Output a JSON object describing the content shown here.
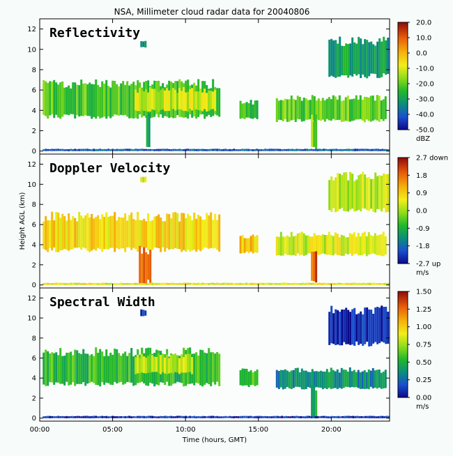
{
  "figure_title": "NSA, Millimeter cloud radar data for 20040806",
  "chart_data": [
    {
      "type": "heatmap",
      "panel_label": "Reflectivity",
      "xlabel": "",
      "ylabel": "",
      "x_ticks": [
        "00:00",
        "05:00",
        "10:00",
        "15:00",
        "20:00"
      ],
      "y_ticks": [
        0,
        2,
        4,
        6,
        8,
        10,
        12
      ],
      "xlim_hours": [
        0,
        24
      ],
      "ylim_km": [
        -0.3,
        13
      ],
      "colorbar": {
        "ticks": [
          "20.0",
          "10.0",
          "0.0",
          "-10.0",
          "-20.0",
          "-30.0",
          "-40.0",
          "-50.0"
        ],
        "unit": "dBZ",
        "range": [
          -50,
          20
        ]
      },
      "features": [
        {
          "hours": [
            0.2,
            12.3
          ],
          "km": [
            3.4,
            6.6
          ],
          "value": -22
        },
        {
          "hours": [
            6.5,
            12.0
          ],
          "km": [
            4.0,
            6.0
          ],
          "value": -12
        },
        {
          "hours": [
            7.3,
            7.5
          ],
          "km": [
            0.5,
            3.5
          ],
          "value": -30
        },
        {
          "hours": [
            6.9,
            7.2
          ],
          "km": [
            10.2,
            10.8
          ],
          "value": -35
        },
        {
          "hours": [
            13.7,
            14.9
          ],
          "km": [
            3.2,
            4.8
          ],
          "value": -22
        },
        {
          "hours": [
            16.2,
            23.8
          ],
          "km": [
            3.0,
            5.2
          ],
          "value": -20
        },
        {
          "hours": [
            18.6,
            19.0
          ],
          "km": [
            0.2,
            3.2
          ],
          "value": -18
        },
        {
          "hours": [
            19.8,
            23.9
          ],
          "km": [
            7.4,
            10.8
          ],
          "value": -30
        },
        {
          "hours": [
            0.2,
            23.9
          ],
          "km": [
            0.0,
            0.2
          ],
          "value": -40
        }
      ]
    },
    {
      "type": "heatmap",
      "panel_label": "Doppler Velocity",
      "xlabel": "",
      "ylabel": "Height AGL (km)",
      "x_ticks": [
        "00:00",
        "05:00",
        "10:00",
        "15:00",
        "20:00"
      ],
      "y_ticks": [
        0,
        2,
        4,
        6,
        8,
        10,
        12
      ],
      "xlim_hours": [
        0,
        24
      ],
      "ylim_km": [
        -0.3,
        13
      ],
      "colorbar": {
        "ticks": [
          "2.7 down",
          "1.8",
          "0.9",
          "0.0",
          "-0.9",
          "-1.8",
          "-2.7 up"
        ],
        "unit": "m/s",
        "range": [
          -2.7,
          2.7
        ]
      },
      "features": [
        {
          "hours": [
            0.2,
            12.3
          ],
          "km": [
            3.5,
            6.8
          ],
          "value": 0.8
        },
        {
          "hours": [
            6.8,
            7.6
          ],
          "km": [
            0.3,
            3.5
          ],
          "value": 2.0
        },
        {
          "hours": [
            6.9,
            7.2
          ],
          "km": [
            10.2,
            10.8
          ],
          "value": 0.3
        },
        {
          "hours": [
            13.7,
            14.9
          ],
          "km": [
            3.2,
            4.8
          ],
          "value": 0.9
        },
        {
          "hours": [
            16.2,
            23.8
          ],
          "km": [
            3.0,
            5.0
          ],
          "value": 0.3
        },
        {
          "hours": [
            18.6,
            19.0
          ],
          "km": [
            0.2,
            3.2
          ],
          "value": 2.0
        },
        {
          "hours": [
            19.8,
            23.9
          ],
          "km": [
            7.4,
            10.8
          ],
          "value": 0.2
        },
        {
          "hours": [
            0.2,
            23.9
          ],
          "km": [
            0.0,
            0.2
          ],
          "value": 0.5
        }
      ]
    },
    {
      "type": "heatmap",
      "panel_label": "Spectral Width",
      "xlabel": "Time (hours, GMT)",
      "ylabel": "",
      "x_ticks": [
        "00:00",
        "05:00",
        "10:00",
        "15:00",
        "20:00"
      ],
      "y_ticks": [
        0,
        2,
        4,
        6,
        8,
        10,
        12
      ],
      "xlim_hours": [
        0,
        24
      ],
      "ylim_km": [
        -0.3,
        13
      ],
      "colorbar": {
        "ticks": [
          "1.50",
          "1.25",
          "1.00",
          "0.75",
          "0.50",
          "0.25",
          "0.00"
        ],
        "unit": "m/s",
        "range": [
          0,
          1.5
        ]
      },
      "features": [
        {
          "hours": [
            0.2,
            12.3
          ],
          "km": [
            3.4,
            6.6
          ],
          "value": 0.55
        },
        {
          "hours": [
            6.5,
            10.5
          ],
          "km": [
            4.5,
            6.2
          ],
          "value": 0.8
        },
        {
          "hours": [
            13.7,
            14.9
          ],
          "km": [
            3.2,
            4.8
          ],
          "value": 0.6
        },
        {
          "hours": [
            16.2,
            23.8
          ],
          "km": [
            3.0,
            4.8
          ],
          "value": 0.35
        },
        {
          "hours": [
            18.6,
            19.0
          ],
          "km": [
            0.2,
            3.2
          ],
          "value": 0.5
        },
        {
          "hours": [
            19.8,
            23.9
          ],
          "km": [
            7.4,
            10.8
          ],
          "value": 0.1
        },
        {
          "hours": [
            6.9,
            7.2
          ],
          "km": [
            10.2,
            10.8
          ],
          "value": 0.1
        },
        {
          "hours": [
            0.2,
            23.9
          ],
          "km": [
            0.0,
            0.2
          ],
          "value": 0.1
        }
      ]
    }
  ]
}
